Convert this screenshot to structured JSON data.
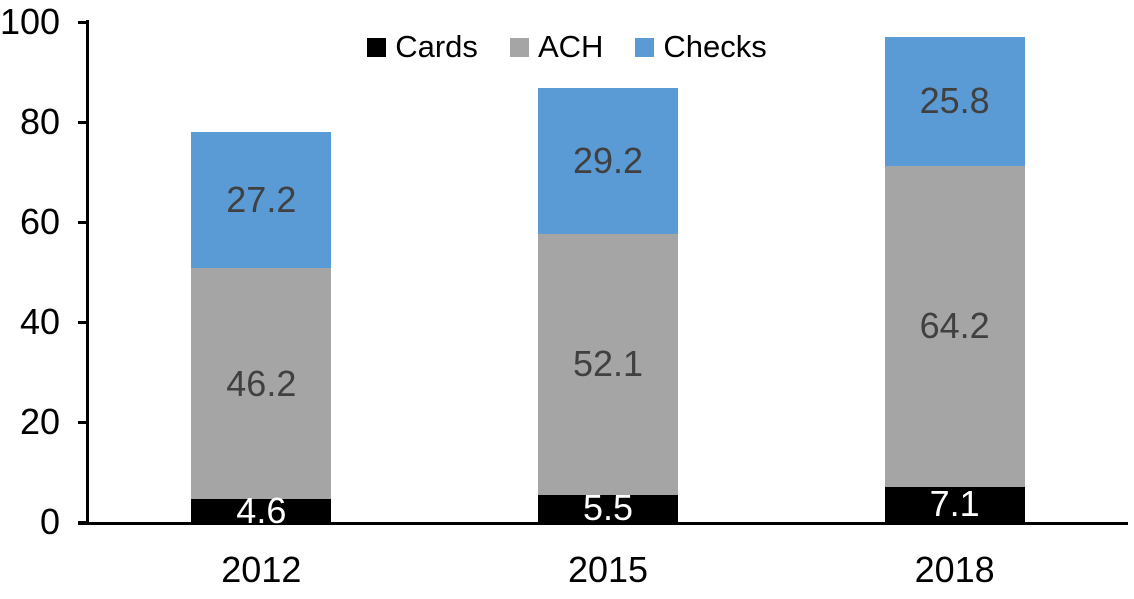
{
  "chart_data": {
    "type": "bar",
    "stacked": true,
    "title": "",
    "xlabel": "",
    "ylabel": "",
    "categories": [
      "2012",
      "2015",
      "2018"
    ],
    "series": [
      {
        "name": "Cards",
        "color": "#000000",
        "label_color": "#FFFFFF",
        "values": [
          4.6,
          5.5,
          7.1
        ]
      },
      {
        "name": "ACH",
        "color": "#A5A5A5",
        "label_color": "#404040",
        "values": [
          46.2,
          52.1,
          64.2
        ]
      },
      {
        "name": "Checks",
        "color": "#5B9BD5",
        "label_color": "#404040",
        "values": [
          27.2,
          29.2,
          25.8
        ]
      }
    ],
    "y_axis": {
      "min": 0,
      "max": 100,
      "tick_interval": 20,
      "ticks": [
        0,
        20,
        40,
        60,
        80,
        100
      ]
    },
    "legend": {
      "position": "top"
    },
    "grid": false,
    "axis_color": "#000000",
    "background": "#FFFFFF"
  }
}
